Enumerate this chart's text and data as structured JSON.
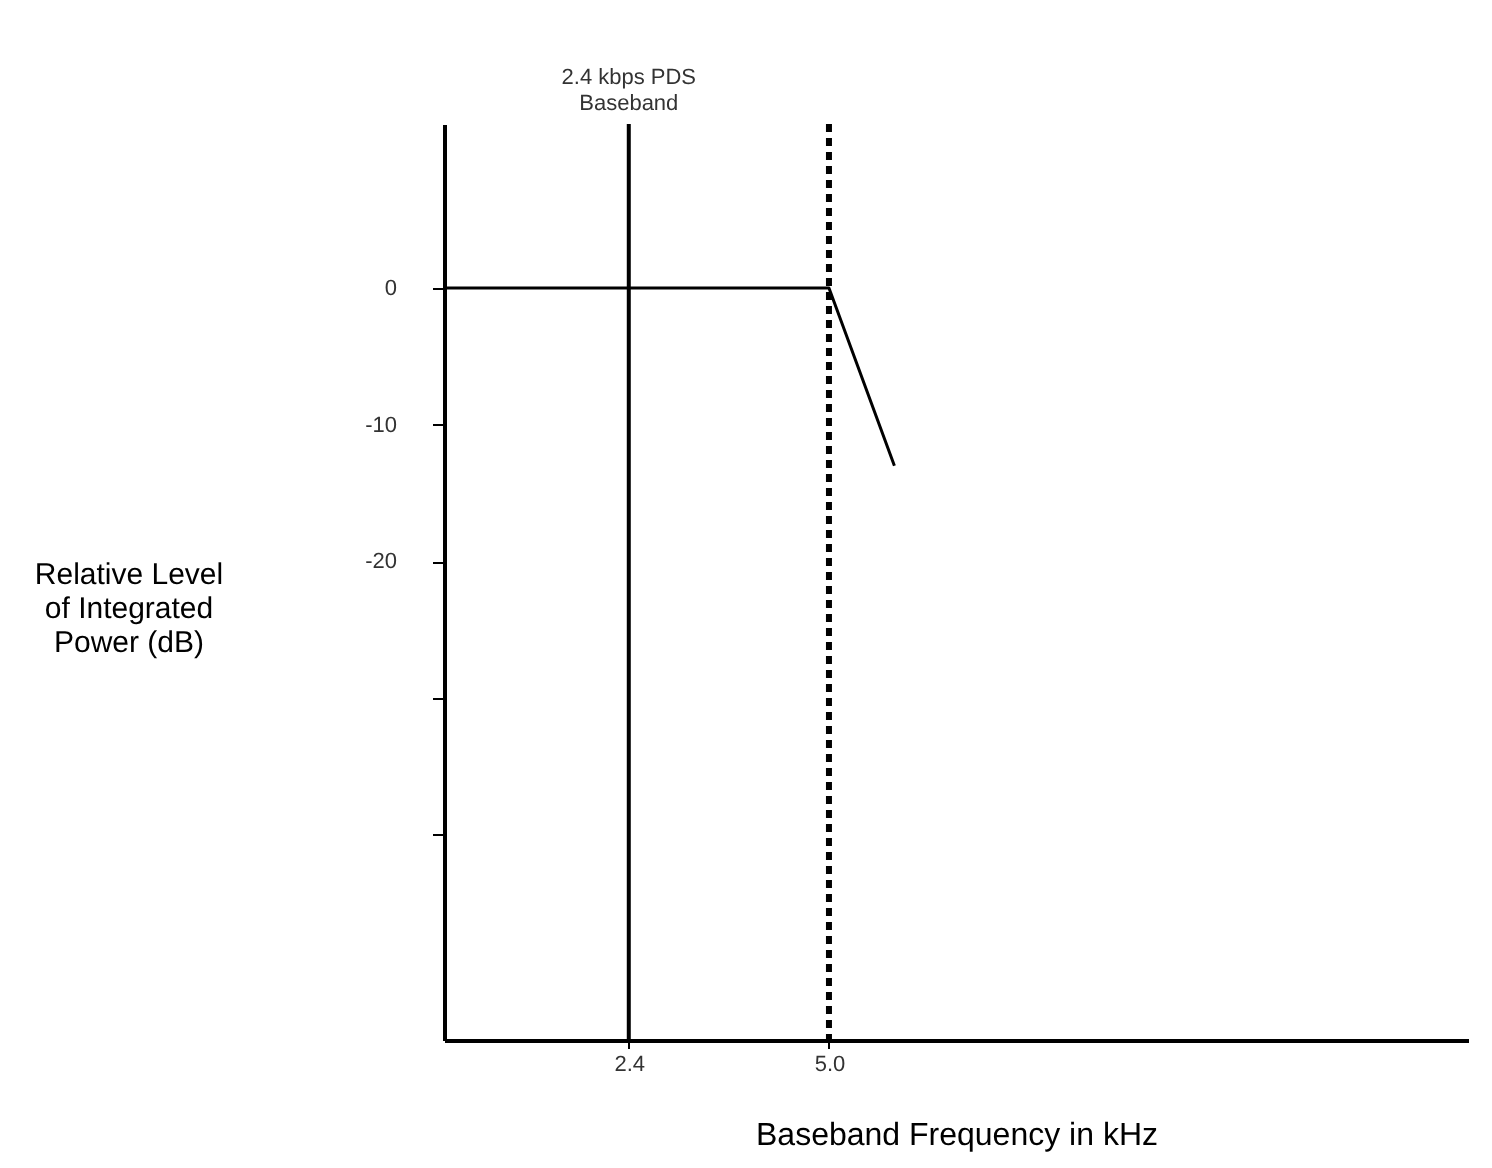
{
  "chart_data": {
    "type": "line",
    "xlabel": "Baseband Frequency in kHz",
    "ylabel": "Relative Level of Integrated Power (dB)",
    "x": [
      0,
      5.0,
      5.85
    ],
    "series": [
      {
        "color": "#000000",
        "values": [
          0,
          0,
          -13
        ]
      }
    ],
    "xlim": [
      0,
      13.3
    ],
    "ylim": [
      -55,
      12
    ],
    "xticks": [
      2.4,
      {
        "value": 5,
        "label": "5.0"
      }
    ],
    "yticks": [
      0,
      -10,
      -20,
      {
        "value": -30,
        "label": null
      },
      {
        "value": -40,
        "label": null
      }
    ],
    "ref_lines": [
      {
        "axis": "x",
        "value": 2.4,
        "label": "2.4 kbps PDS Baseband",
        "line_style": "solid"
      },
      {
        "axis": "x",
        "value": 5.0,
        "line_style": "dashed"
      }
    ],
    "grid": false,
    "marker": "none",
    "line_style": "solid"
  }
}
